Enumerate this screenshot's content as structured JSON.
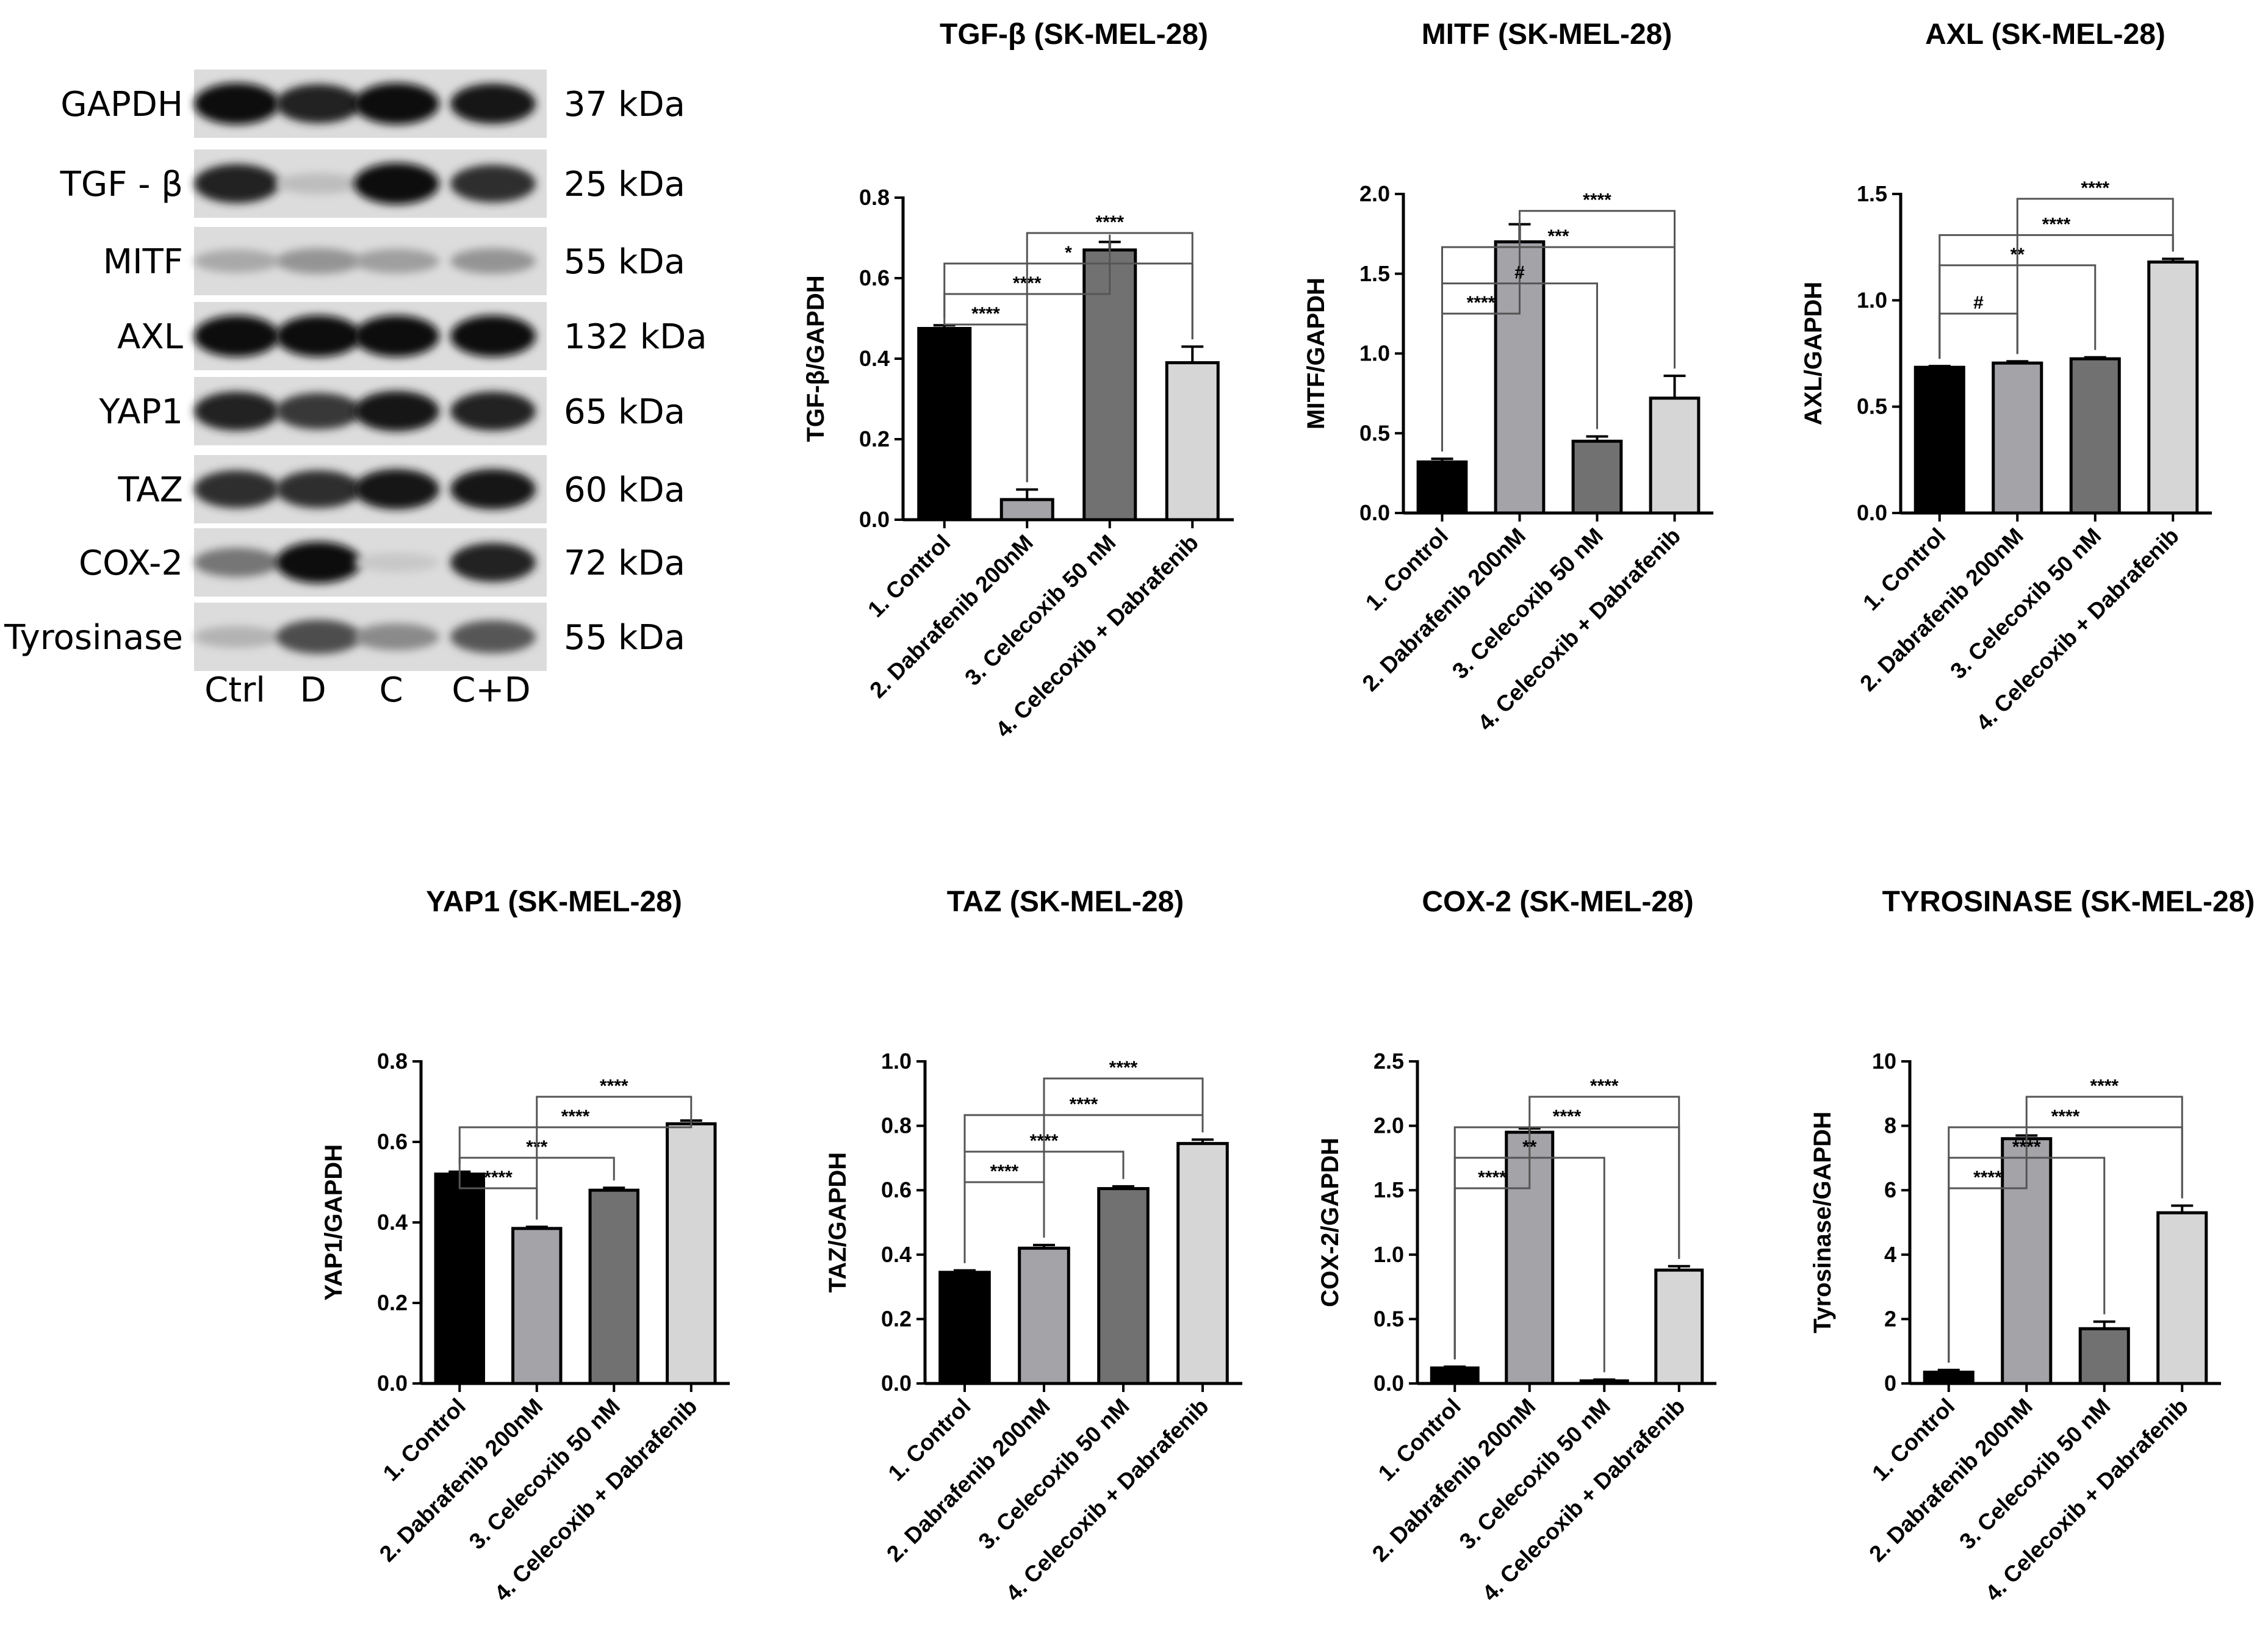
{
  "western_blot": {
    "proteins": [
      "GAPDH",
      "TGF - β",
      "MITF",
      "AXL",
      "YAP1",
      "TAZ",
      "COX-2",
      "Tyrosinase"
    ],
    "sizes": [
      "37 kDa",
      "25 kDa",
      "55 kDa",
      "132 kDa",
      "65 kDa",
      "60 kDa",
      "72 kDa",
      "55 kDa"
    ],
    "lanes": [
      "Ctrl",
      "D",
      "C",
      "C+D"
    ],
    "band_intensity": [
      [
        1.0,
        0.9,
        1.0,
        0.95
      ],
      [
        0.9,
        0.15,
        1.0,
        0.85
      ],
      [
        0.25,
        0.35,
        0.3,
        0.35
      ],
      [
        1.0,
        1.0,
        1.0,
        1.0
      ],
      [
        0.9,
        0.8,
        0.95,
        0.9
      ],
      [
        0.85,
        0.85,
        0.95,
        0.95
      ],
      [
        0.5,
        1.0,
        0.1,
        0.9
      ],
      [
        0.2,
        0.7,
        0.4,
        0.65
      ]
    ]
  },
  "colors": [
    "#000000",
    "#a3a3a8",
    "#717171",
    "#d6d6d6"
  ],
  "chart_data": [
    {
      "type": "bar",
      "title": "TGF-β (SK-MEL-28)",
      "ylabel": "TGF-β/GAPDH",
      "categories": [
        "1. Control",
        "2. Dabrafenib 200nM",
        "3. Celecoxib 50 nM",
        "4. Celecoxib + Dabrafenib"
      ],
      "values": [
        0.475,
        0.05,
        0.67,
        0.39
      ],
      "errors": [
        0.008,
        0.025,
        0.02,
        0.04
      ],
      "ylim": [
        0,
        0.8
      ],
      "yticks": [
        "0.0",
        "0.2",
        "0.4",
        "0.6",
        "0.8"
      ],
      "comparisons": [
        {
          "from": 0,
          "to": 1,
          "label": "****"
        },
        {
          "from": 0,
          "to": 2,
          "label": "****"
        },
        {
          "from": 0,
          "to": 3,
          "label": "*"
        },
        {
          "from": 1,
          "to": 3,
          "label": "****"
        }
      ]
    },
    {
      "type": "bar",
      "title": "MITF (SK-MEL-28)",
      "ylabel": "MITF/GAPDH",
      "categories": [
        "1. Control",
        "2. Dabrafenib 200nM",
        "3. Celecoxib 50 nM",
        "4. Celecoxib + Dabrafenib"
      ],
      "values": [
        0.32,
        1.7,
        0.45,
        0.72
      ],
      "errors": [
        0.02,
        0.11,
        0.03,
        0.14
      ],
      "ylim": [
        0,
        2.0
      ],
      "yticks": [
        "0.0",
        "0.5",
        "1.0",
        "1.5",
        "2.0"
      ],
      "comparisons": [
        {
          "from": 0,
          "to": 1,
          "label": "****"
        },
        {
          "from": 0,
          "to": 2,
          "label": "#"
        },
        {
          "from": 0,
          "to": 3,
          "label": "***"
        },
        {
          "from": 1,
          "to": 3,
          "label": "****"
        }
      ]
    },
    {
      "type": "bar",
      "title": "AXL (SK-MEL-28)",
      "ylabel": "AXL/GAPDH",
      "categories": [
        "1. Control",
        "2. Dabrafenib 200nM",
        "3. Celecoxib 50 nM",
        "4. Celecoxib + Dabrafenib"
      ],
      "values": [
        0.685,
        0.705,
        0.725,
        1.18
      ],
      "errors": [
        0.006,
        0.008,
        0.007,
        0.015
      ],
      "ylim": [
        0,
        1.5
      ],
      "yticks": [
        "0.0",
        "0.5",
        "1.0",
        "1.5"
      ],
      "comparisons": [
        {
          "from": 0,
          "to": 1,
          "label": "#"
        },
        {
          "from": 0,
          "to": 2,
          "label": "**"
        },
        {
          "from": 0,
          "to": 3,
          "label": "****"
        },
        {
          "from": 1,
          "to": 3,
          "label": "****"
        }
      ]
    },
    {
      "type": "bar",
      "title": "YAP1 (SK-MEL-28)",
      "ylabel": "YAP1/GAPDH",
      "categories": [
        "1. Control",
        "2. Dabrafenib 200nM",
        "3. Celecoxib 50 nM",
        "4. Celecoxib + Dabrafenib"
      ],
      "values": [
        0.52,
        0.385,
        0.48,
        0.645
      ],
      "errors": [
        0.006,
        0.004,
        0.006,
        0.008
      ],
      "ylim": [
        0,
        0.8
      ],
      "yticks": [
        "0.0",
        "0.2",
        "0.4",
        "0.6",
        "0.8"
      ],
      "comparisons": [
        {
          "from": 0,
          "to": 1,
          "label": "****"
        },
        {
          "from": 0,
          "to": 2,
          "label": "***"
        },
        {
          "from": 0,
          "to": 3,
          "label": "****"
        },
        {
          "from": 1,
          "to": 3,
          "label": "****"
        }
      ]
    },
    {
      "type": "bar",
      "title": "TAZ (SK-MEL-28)",
      "ylabel": "TAZ/GAPDH",
      "categories": [
        "1. Control",
        "2. Dabrafenib 200nM",
        "3. Celecoxib 50 nM",
        "4. Celecoxib + Dabrafenib"
      ],
      "values": [
        0.345,
        0.42,
        0.605,
        0.745
      ],
      "errors": [
        0.006,
        0.01,
        0.007,
        0.012
      ],
      "ylim": [
        0,
        1.0
      ],
      "yticks": [
        "0.0",
        "0.2",
        "0.4",
        "0.6",
        "0.8",
        "1.0"
      ],
      "comparisons": [
        {
          "from": 0,
          "to": 1,
          "label": "****"
        },
        {
          "from": 0,
          "to": 2,
          "label": "****"
        },
        {
          "from": 0,
          "to": 3,
          "label": "****"
        },
        {
          "from": 1,
          "to": 3,
          "label": "****"
        }
      ]
    },
    {
      "type": "bar",
      "title": "COX-2 (SK-MEL-28)",
      "ylabel": "COX-2/GAPDH",
      "categories": [
        "1. Control",
        "2. Dabrafenib 200nM",
        "3. Celecoxib 50 nM",
        "4. Celecoxib + Dabrafenib"
      ],
      "values": [
        0.12,
        1.95,
        0.02,
        0.88
      ],
      "errors": [
        0.01,
        0.03,
        0.01,
        0.03
      ],
      "ylim": [
        0,
        2.5
      ],
      "yticks": [
        "0.0",
        "0.5",
        "1.0",
        "1.5",
        "2.0",
        "2.5"
      ],
      "comparisons": [
        {
          "from": 0,
          "to": 1,
          "label": "****"
        },
        {
          "from": 0,
          "to": 2,
          "label": "**"
        },
        {
          "from": 0,
          "to": 3,
          "label": "****"
        },
        {
          "from": 1,
          "to": 3,
          "label": "****"
        }
      ]
    },
    {
      "type": "bar",
      "title": "TYROSINASE (SK-MEL-28)",
      "ylabel": "Tyrosinase/GAPDH",
      "categories": [
        "1. Control",
        "2. Dabrafenib 200nM",
        "3. Celecoxib 50 nM",
        "4. Celecoxib + Dabrafenib"
      ],
      "values": [
        0.35,
        7.6,
        1.7,
        5.3
      ],
      "errors": [
        0.07,
        0.1,
        0.22,
        0.22
      ],
      "ylim": [
        0,
        10
      ],
      "yticks": [
        "0",
        "2",
        "4",
        "6",
        "8",
        "10"
      ],
      "comparisons": [
        {
          "from": 0,
          "to": 1,
          "label": "****"
        },
        {
          "from": 0,
          "to": 2,
          "label": "****"
        },
        {
          "from": 0,
          "to": 3,
          "label": "****"
        },
        {
          "from": 1,
          "to": 3,
          "label": "****"
        }
      ]
    }
  ]
}
